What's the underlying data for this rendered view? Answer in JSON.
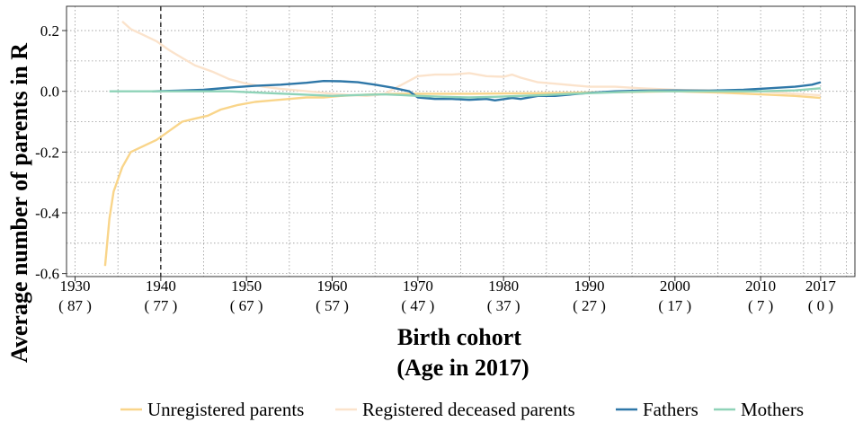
{
  "chart_data": {
    "type": "line",
    "title": "",
    "ylabel": "Average number of parents in R",
    "xlabel_line1": "Birth cohort",
    "xlabel_line2": "(Age in 2017)",
    "xlim": [
      1929,
      2021
    ],
    "ylim": [
      -0.61,
      0.28
    ],
    "grid": true,
    "reference_line_x": 1940,
    "legend_position": "bottom",
    "x_ticks": [
      {
        "year": 1930,
        "label": "1930",
        "age": "( 87 )"
      },
      {
        "year": 1940,
        "label": "1940",
        "age": "( 77 )"
      },
      {
        "year": 1950,
        "label": "1950",
        "age": "( 67 )"
      },
      {
        "year": 1960,
        "label": "1960",
        "age": "( 57 )"
      },
      {
        "year": 1970,
        "label": "1970",
        "age": "( 47 )"
      },
      {
        "year": 1980,
        "label": "1980",
        "age": "( 37 )"
      },
      {
        "year": 1990,
        "label": "1990",
        "age": "( 27 )"
      },
      {
        "year": 2000,
        "label": "2000",
        "age": "( 17 )"
      },
      {
        "year": 2010,
        "label": "2010",
        "age": "( 7 )"
      },
      {
        "year": 2017,
        "label": "2017",
        "age": "( 0 )"
      }
    ],
    "y_ticks": [
      {
        "value": 0.2,
        "label": "0.2"
      },
      {
        "value": 0.0,
        "label": "0.0"
      },
      {
        "value": -0.2,
        "label": "-0.2"
      },
      {
        "value": -0.4,
        "label": "-0.4"
      },
      {
        "value": -0.6,
        "label": "-0.6"
      }
    ],
    "series": [
      {
        "name": "Unregistered parents",
        "color": "#f9d58a",
        "points": [
          [
            1933.5,
            -0.575
          ],
          [
            1934,
            -0.42
          ],
          [
            1934.5,
            -0.33
          ],
          [
            1935.5,
            -0.25
          ],
          [
            1936.5,
            -0.2
          ],
          [
            1938,
            -0.18
          ],
          [
            1939.5,
            -0.16
          ],
          [
            1941,
            -0.13
          ],
          [
            1942.5,
            -0.1
          ],
          [
            1944,
            -0.09
          ],
          [
            1945.5,
            -0.08
          ],
          [
            1947,
            -0.06
          ],
          [
            1949,
            -0.045
          ],
          [
            1951,
            -0.035
          ],
          [
            1953,
            -0.03
          ],
          [
            1955,
            -0.025
          ],
          [
            1957,
            -0.02
          ],
          [
            1959,
            -0.02
          ],
          [
            1961,
            -0.015
          ],
          [
            1963,
            -0.012
          ],
          [
            1965,
            -0.01
          ],
          [
            1968,
            -0.008
          ],
          [
            1972,
            -0.008
          ],
          [
            1976,
            -0.008
          ],
          [
            1980,
            -0.007
          ],
          [
            1985,
            -0.006
          ],
          [
            1990,
            -0.004
          ],
          [
            1995,
            -0.002
          ],
          [
            2000,
            0.0
          ],
          [
            2005,
            -0.004
          ],
          [
            2010,
            -0.01
          ],
          [
            2014,
            -0.015
          ],
          [
            2017,
            -0.022
          ]
        ]
      },
      {
        "name": "Registered deceased parents",
        "color": "#fbe3cc",
        "points": [
          [
            1935.5,
            0.23
          ],
          [
            1936.5,
            0.205
          ],
          [
            1938,
            0.185
          ],
          [
            1939.5,
            0.165
          ],
          [
            1941,
            0.135
          ],
          [
            1942.5,
            0.11
          ],
          [
            1944,
            0.085
          ],
          [
            1946,
            0.065
          ],
          [
            1948,
            0.04
          ],
          [
            1950,
            0.025
          ],
          [
            1952,
            0.015
          ],
          [
            1954,
            0.008
          ],
          [
            1956,
            0.003
          ],
          [
            1958,
            -0.002
          ],
          [
            1960,
            -0.008
          ],
          [
            1962,
            -0.012
          ],
          [
            1964,
            -0.015
          ],
          [
            1966,
            -0.01
          ],
          [
            1968,
            0.02
          ],
          [
            1970,
            0.05
          ],
          [
            1972,
            0.055
          ],
          [
            1974,
            0.055
          ],
          [
            1976,
            0.06
          ],
          [
            1978,
            0.05
          ],
          [
            1980,
            0.048
          ],
          [
            1981,
            0.055
          ],
          [
            1982,
            0.045
          ],
          [
            1984,
            0.03
          ],
          [
            1986,
            0.025
          ],
          [
            1988,
            0.02
          ],
          [
            1990,
            0.015
          ],
          [
            1993,
            0.015
          ],
          [
            1996,
            0.01
          ],
          [
            2000,
            0.005
          ],
          [
            2005,
            0.003
          ],
          [
            2010,
            0.0
          ],
          [
            2014,
            -0.008
          ],
          [
            2017,
            -0.013
          ]
        ]
      },
      {
        "name": "Fathers",
        "color": "#2e77a8",
        "points": [
          [
            1939,
            0.0
          ],
          [
            1942,
            0.002
          ],
          [
            1945,
            0.005
          ],
          [
            1948,
            0.012
          ],
          [
            1951,
            0.018
          ],
          [
            1954,
            0.022
          ],
          [
            1957,
            0.028
          ],
          [
            1959,
            0.034
          ],
          [
            1961,
            0.033
          ],
          [
            1963,
            0.03
          ],
          [
            1965,
            0.022
          ],
          [
            1967,
            0.012
          ],
          [
            1969,
            0.0
          ],
          [
            1970,
            -0.02
          ],
          [
            1972,
            -0.025
          ],
          [
            1974,
            -0.025
          ],
          [
            1976,
            -0.028
          ],
          [
            1978,
            -0.025
          ],
          [
            1979,
            -0.03
          ],
          [
            1981,
            -0.022
          ],
          [
            1982,
            -0.025
          ],
          [
            1984,
            -0.015
          ],
          [
            1986,
            -0.015
          ],
          [
            1988,
            -0.01
          ],
          [
            1990,
            -0.005
          ],
          [
            1993,
            0.0
          ],
          [
            1996,
            0.002
          ],
          [
            2000,
            0.003
          ],
          [
            2004,
            0.002
          ],
          [
            2008,
            0.005
          ],
          [
            2011,
            0.01
          ],
          [
            2014,
            0.015
          ],
          [
            2016,
            0.022
          ],
          [
            2017,
            0.03
          ]
        ]
      },
      {
        "name": "Mothers",
        "color": "#8fd3b8",
        "points": [
          [
            1934,
            0.0
          ],
          [
            1937,
            0.0
          ],
          [
            1940,
            0.0
          ],
          [
            1944,
            0.0
          ],
          [
            1948,
            0.0
          ],
          [
            1952,
            -0.005
          ],
          [
            1956,
            -0.01
          ],
          [
            1960,
            -0.015
          ],
          [
            1963,
            -0.012
          ],
          [
            1966,
            -0.01
          ],
          [
            1968,
            -0.012
          ],
          [
            1970,
            -0.015
          ],
          [
            1973,
            -0.018
          ],
          [
            1976,
            -0.02
          ],
          [
            1979,
            -0.018
          ],
          [
            1982,
            -0.015
          ],
          [
            1985,
            -0.012
          ],
          [
            1988,
            -0.008
          ],
          [
            1991,
            -0.005
          ],
          [
            1994,
            -0.002
          ],
          [
            1997,
            0.0
          ],
          [
            2000,
            0.0
          ],
          [
            2005,
            0.0
          ],
          [
            2010,
            0.0
          ],
          [
            2014,
            0.003
          ],
          [
            2017,
            0.01
          ]
        ]
      }
    ]
  }
}
